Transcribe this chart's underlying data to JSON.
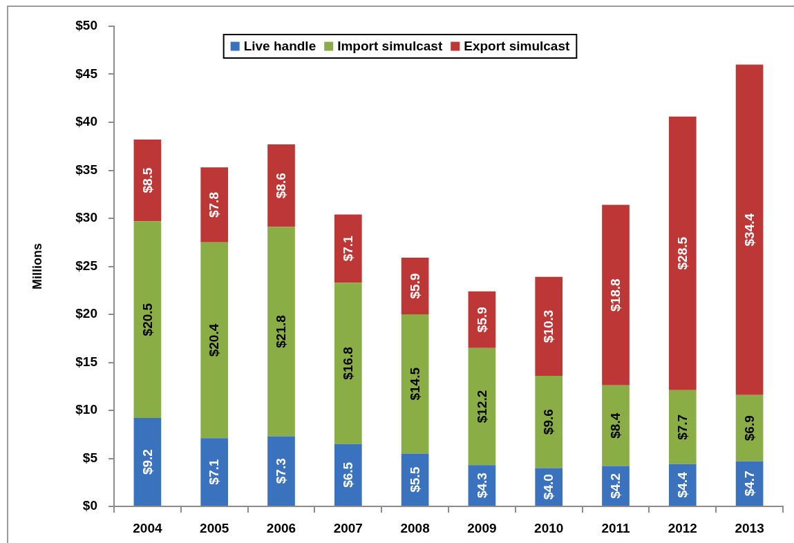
{
  "chart_data": {
    "type": "bar",
    "stacked": true,
    "ylabel": "Millions",
    "legend": "top",
    "categories": [
      "2004",
      "2005",
      "2006",
      "2007",
      "2008",
      "2009",
      "2010",
      "2011",
      "2012",
      "2013"
    ],
    "ylim": [
      0,
      50
    ],
    "yticks": [
      {
        "value": 0,
        "label": "$0"
      },
      {
        "value": 5,
        "label": "$5"
      },
      {
        "value": 10,
        "label": "$10"
      },
      {
        "value": 15,
        "label": "$15"
      },
      {
        "value": 20,
        "label": "$20"
      },
      {
        "value": 25,
        "label": "$25"
      },
      {
        "value": 30,
        "label": "$30"
      },
      {
        "value": 35,
        "label": "$35"
      },
      {
        "value": 40,
        "label": "$40"
      },
      {
        "value": 45,
        "label": "$45"
      },
      {
        "value": 50,
        "label": "$50"
      }
    ],
    "series": [
      {
        "name": "Live handle",
        "color": "#3a72bd",
        "values": [
          9.2,
          7.1,
          7.3,
          6.5,
          5.5,
          4.3,
          4.0,
          4.2,
          4.4,
          4.7
        ],
        "value_labels": [
          "$9.2",
          "$7.1",
          "$7.3",
          "$6.5",
          "$5.5",
          "$4.3",
          "$4.0",
          "$4.2",
          "$4.4",
          "$4.7"
        ]
      },
      {
        "name": "Import simulcast",
        "color": "#8aad45",
        "values": [
          20.5,
          20.4,
          21.8,
          16.8,
          14.5,
          12.2,
          9.6,
          8.4,
          7.7,
          6.9
        ],
        "value_labels": [
          "$20.5",
          "$20.4",
          "$21.8",
          "$16.8",
          "$14.5",
          "$12.2",
          "$9.6",
          "$8.4",
          "$7.7",
          "$6.9"
        ]
      },
      {
        "name": "Export simulcast",
        "color": "#bc3735",
        "values": [
          8.5,
          7.8,
          8.6,
          7.1,
          5.9,
          5.9,
          10.3,
          18.8,
          28.5,
          34.4
        ],
        "value_labels": [
          "$8.5",
          "$7.8",
          "$8.6",
          "$7.1",
          "$5.9",
          "$5.9",
          "$10.3",
          "$18.8",
          "$28.5",
          "$34.4"
        ]
      }
    ]
  }
}
